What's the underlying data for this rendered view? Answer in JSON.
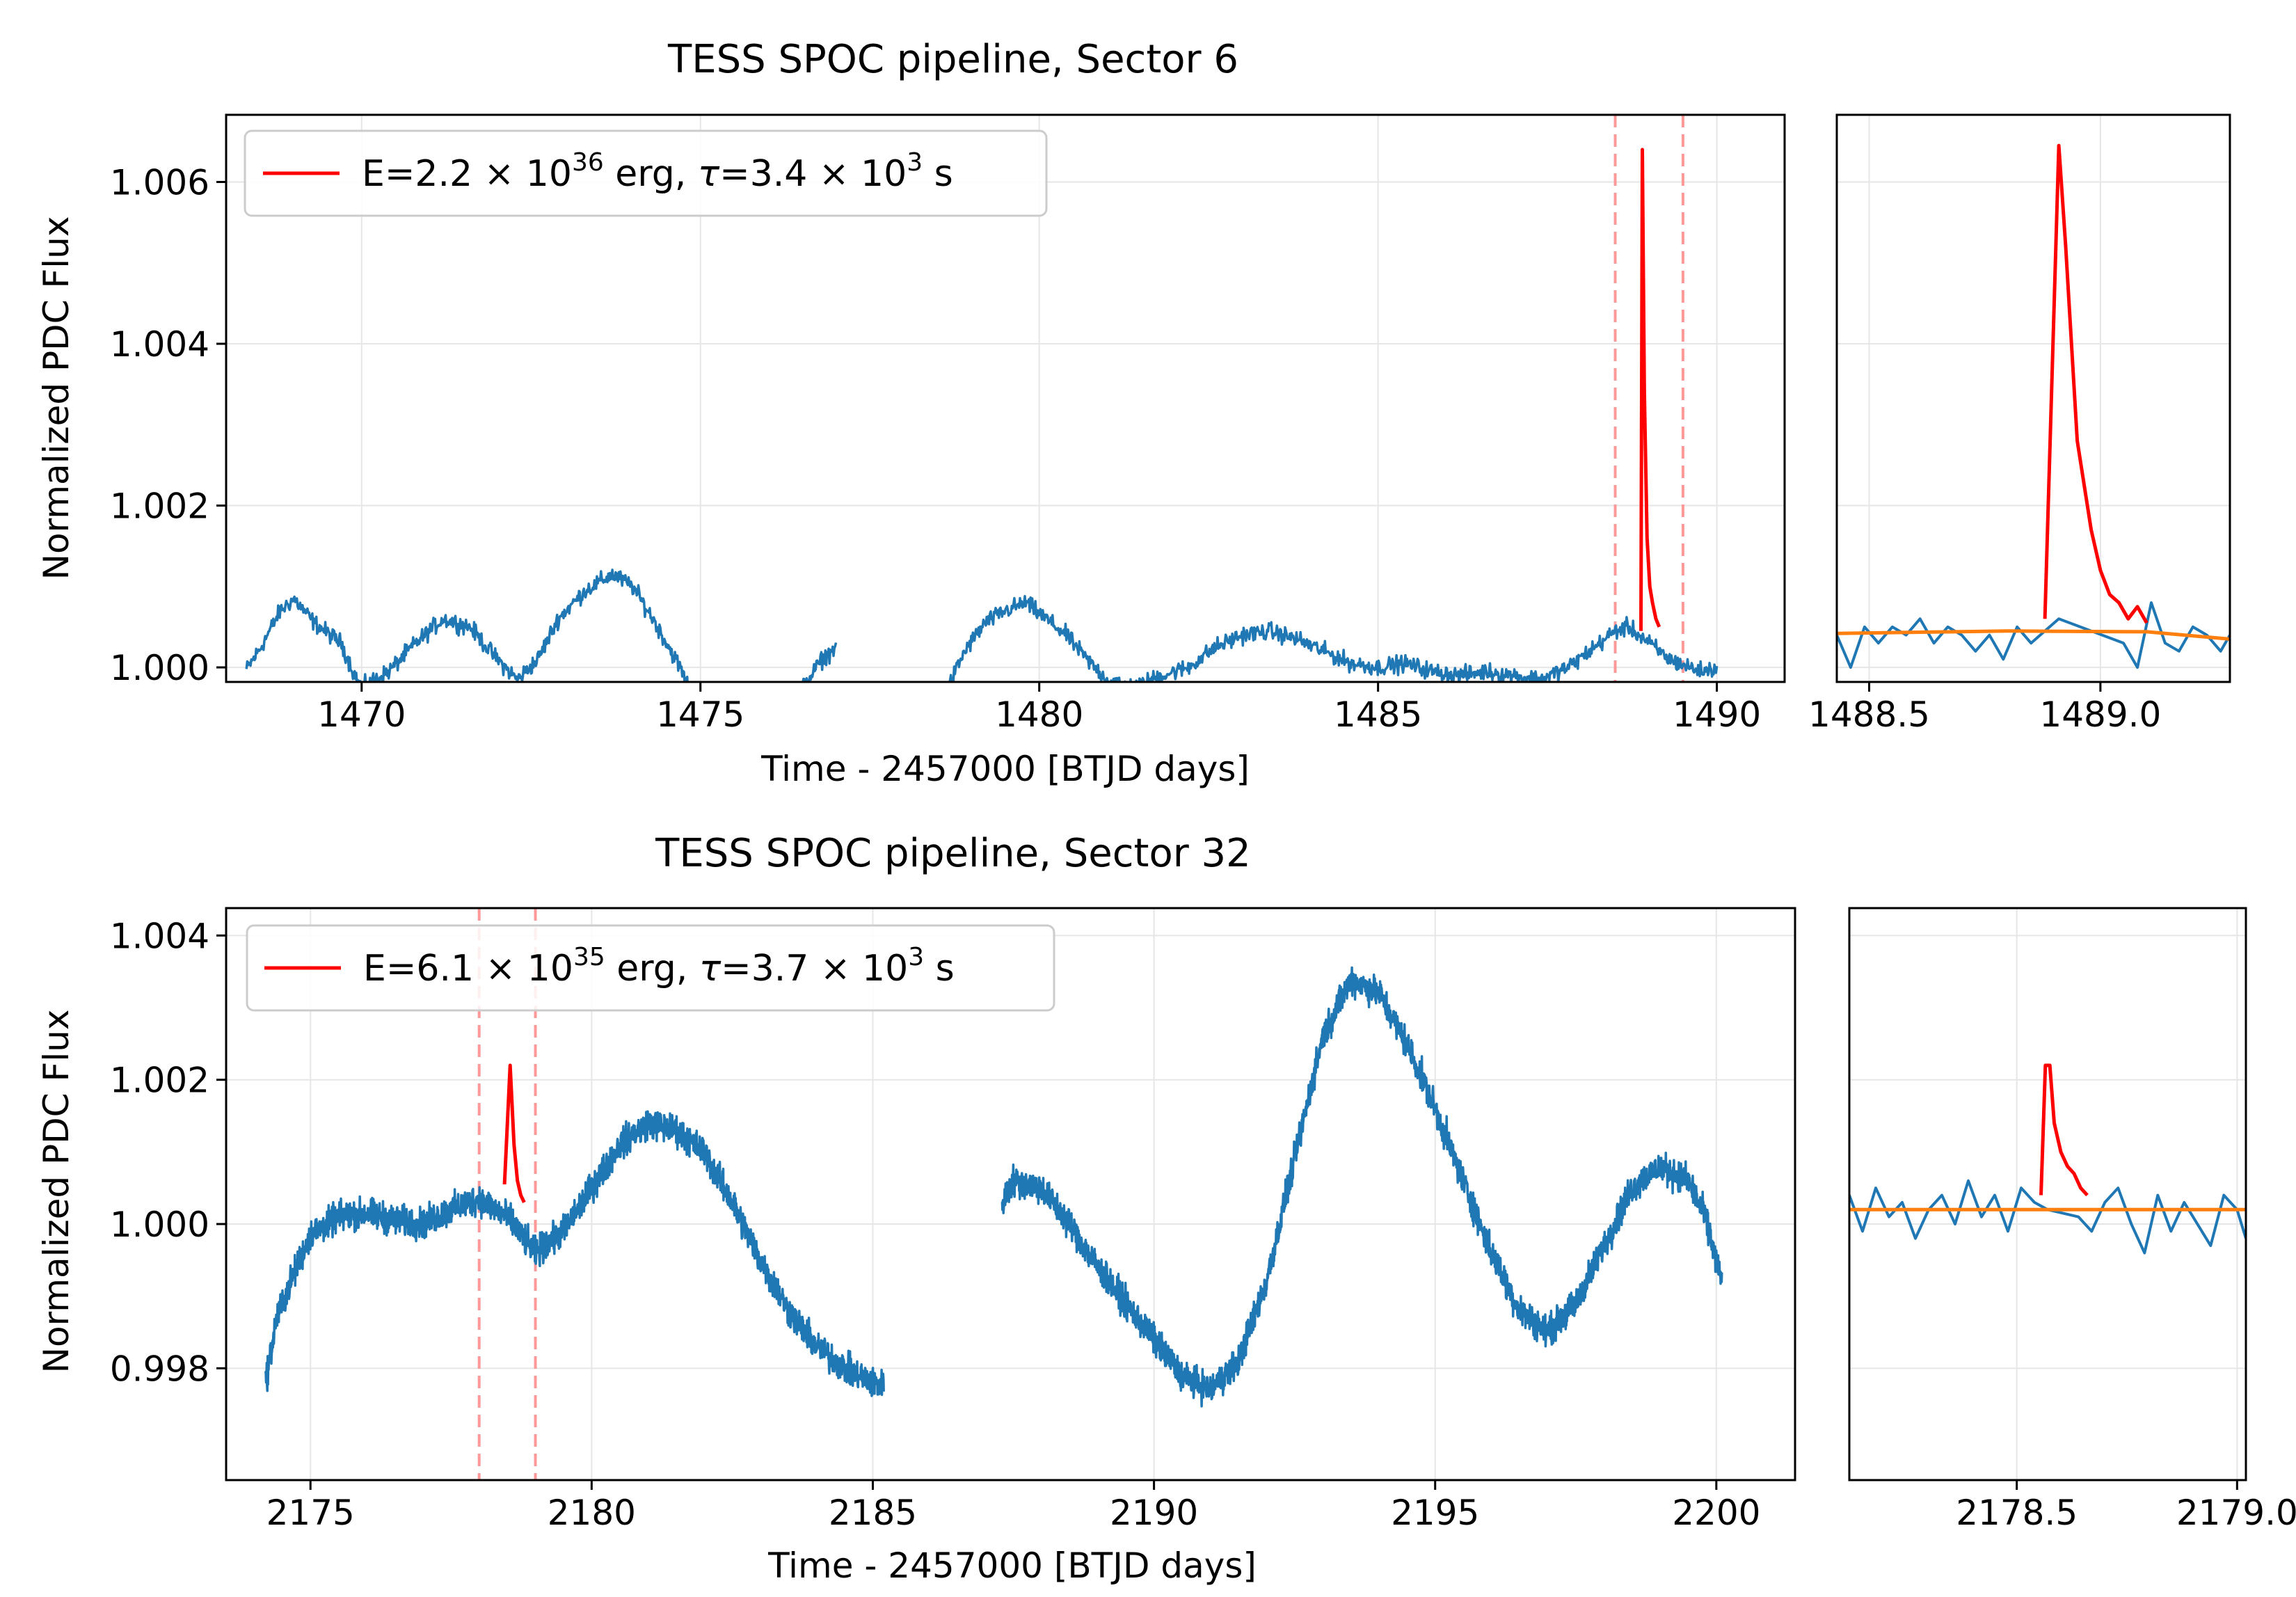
{
  "figure": {
    "background": "#ffffff"
  },
  "chart_data": [
    {
      "type": "line",
      "title": "TESS SPOC pipeline, Sector 6",
      "xlabel": "Time - 2457000 [BTJD days]",
      "ylabel": "Normalized PDC Flux",
      "xlim": [
        1468.0,
        1491.0
      ],
      "ylim": [
        0.99982,
        1.00683
      ],
      "xticks": [
        1470,
        1475,
        1480,
        1485,
        1490
      ],
      "xtick_labels": [
        "1470",
        "1475",
        "1480",
        "1485",
        "1490"
      ],
      "yticks": [
        1.0,
        1.002,
        1.004,
        1.006
      ],
      "ytick_labels": [
        "1.000",
        "1.002",
        "1.004",
        "1.006"
      ],
      "grid": true,
      "legend": {
        "placement": "upper-left",
        "label_pre": "E=2.2",
        "label_mid": "10",
        "label_exp": "36",
        "label_post": " erg, ",
        "label_tau": "τ",
        "label_eq": "=3.4",
        "label_mid2": "10",
        "label_exp2": "3",
        "label_end": " s"
      },
      "colors": {
        "light_curve": "#1f77b4",
        "flare": "#ff0000",
        "window": "#ff9999",
        "model": "#ff7f0e"
      },
      "flare_window": [
        1488.5,
        1489.5
      ],
      "light_curve_segments": [
        {
          "x": [
            1468.3,
            1468.5,
            1468.8,
            1469.0,
            1469.3,
            1469.7,
            1469.9,
            1470.0,
            1470.4,
            1470.8,
            1471.2,
            1471.6,
            1472.0,
            1472.3,
            1472.6,
            1472.9,
            1473.3,
            1473.7,
            1474.0,
            1474.3,
            1474.7,
            1475.0,
            1475.3,
            1475.6,
            1475.9,
            1476.2,
            1476.5,
            1476.8,
            1477.0
          ],
          "y": [
            0.99997,
            1.00023,
            1.0007,
            1.00085,
            1.00055,
            1.0003,
            0.9999,
            0.99975,
            0.99995,
            1.0003,
            1.0006,
            1.0005,
            1.0001,
            0.99985,
            1.0001,
            1.0006,
            1.00095,
            1.00115,
            1.001,
            1.0006,
            1.0,
            0.9994,
            0.9991,
            0.99885,
            0.999,
            0.9993,
            0.99975,
            1.0001,
            1.00025
          ]
        },
        {
          "x": [
            1478.3,
            1478.6,
            1478.9,
            1479.2,
            1479.5,
            1479.8,
            1480.1,
            1480.4,
            1480.7,
            1481.0,
            1481.4,
            1481.8,
            1482.2,
            1482.6,
            1483.0,
            1483.4,
            1483.8,
            1484.2,
            1484.6,
            1485.0,
            1485.4,
            1485.8,
            1486.2,
            1486.6,
            1487.0,
            1487.4,
            1487.8,
            1488.2,
            1488.5,
            1488.7,
            1489.0,
            1489.3,
            1489.6,
            1489.8,
            1490.0
          ],
          "y": [
            0.9995,
            0.99965,
            1.0002,
            1.00055,
            1.0007,
            1.0008,
            1.0006,
            1.0004,
            1.0001,
            0.99985,
            0.99975,
            0.9999,
            1.0,
            1.00025,
            1.0004,
            1.00045,
            1.00035,
            1.0002,
            1.00005,
            1.0,
            1.00005,
            0.99995,
            0.9999,
            0.99995,
            0.9999,
            0.99985,
            1.0,
            1.00025,
            1.00045,
            1.0005,
            1.0003,
            1.0001,
            1.0,
            0.99995,
            1.0
          ]
        }
      ],
      "flare_curve": {
        "x": [
          1488.88,
          1488.9,
          1488.93,
          1488.97,
          1489.01,
          1489.05,
          1489.1,
          1489.15
        ],
        "y": [
          1.00045,
          1.0064,
          1.0034,
          1.0016,
          1.001,
          1.0008,
          1.0006,
          1.0005
        ]
      },
      "inset": {
        "xlim": [
          1488.43,
          1489.28
        ],
        "ylim": [
          0.99982,
          1.00683
        ],
        "xticks": [
          1488.5,
          1489.0
        ],
        "xtick_labels": [
          "1488.5",
          "1489.0"
        ],
        "light_curve": {
          "x": [
            1488.43,
            1488.46,
            1488.49,
            1488.52,
            1488.55,
            1488.58,
            1488.61,
            1488.64,
            1488.67,
            1488.7,
            1488.73,
            1488.76,
            1488.79,
            1488.82,
            1488.85,
            1488.88,
            1488.91,
            1489.05,
            1489.08,
            1489.11,
            1489.14,
            1489.17,
            1489.2,
            1489.23,
            1489.26,
            1489.28
          ],
          "y": [
            1.0004,
            1.0,
            1.0005,
            1.0003,
            1.0005,
            1.0004,
            1.0006,
            1.0003,
            1.0005,
            1.0004,
            1.0002,
            1.0004,
            1.0001,
            1.0005,
            1.0003,
            1.00045,
            1.0006,
            1.0003,
            1.0,
            1.0008,
            1.0003,
            1.0002,
            1.0005,
            1.0004,
            1.0002,
            1.0004
          ]
        },
        "flare_curve": {
          "x": [
            1488.88,
            1488.91,
            1488.925,
            1488.95,
            1488.98,
            1489.0,
            1489.02,
            1489.04,
            1489.06,
            1489.08,
            1489.1
          ],
          "y": [
            1.0006,
            1.00645,
            1.0052,
            1.0028,
            1.0017,
            1.0012,
            1.0009,
            1.0008,
            1.0006,
            1.00075,
            1.00055
          ]
        },
        "model_curve": {
          "x": [
            1488.43,
            1488.8,
            1489.1,
            1489.28
          ],
          "y": [
            1.00042,
            1.00045,
            1.00044,
            1.00035
          ]
        }
      }
    },
    {
      "type": "line",
      "title": "TESS SPOC pipeline, Sector 32",
      "xlabel": "Time - 2457000 [BTJD days]",
      "ylabel": "Normalized PDC Flux",
      "xlim": [
        2173.5,
        2201.4
      ],
      "ylim": [
        0.99645,
        1.00438
      ],
      "xticks": [
        2175,
        2180,
        2185,
        2190,
        2195,
        2200
      ],
      "xtick_labels": [
        "2175",
        "2180",
        "2185",
        "2190",
        "2195",
        "2200"
      ],
      "yticks": [
        0.998,
        1.0,
        1.002,
        1.004
      ],
      "ytick_labels": [
        "0.998",
        "1.000",
        "1.002",
        "1.004"
      ],
      "grid": true,
      "legend": {
        "placement": "upper-left",
        "label_pre": "E=6.1",
        "label_mid": "10",
        "label_exp": "35",
        "label_post": " erg, ",
        "label_tau": "τ",
        "label_eq": "=3.7",
        "label_mid2": "10",
        "label_exp2": "3",
        "label_end": " s"
      },
      "colors": {
        "light_curve": "#1f77b4",
        "flare": "#ff0000",
        "window": "#ff9999",
        "model": "#ff7f0e"
      },
      "flare_window": [
        2178.0,
        2179.0
      ],
      "light_curve_segments": [
        {
          "x": [
            2174.2,
            2174.4,
            2174.7,
            2175.0,
            2175.5,
            2176.0,
            2176.5,
            2177.0,
            2177.5,
            2178.0,
            2178.5,
            2179.0,
            2179.5,
            2180.0,
            2180.5,
            2181.0,
            2181.5,
            2182.0,
            2182.5,
            2183.0,
            2183.5,
            2184.0,
            2184.5,
            2185.0,
            2185.2
          ],
          "y": [
            0.9978,
            0.9987,
            0.9993,
            0.99985,
            1.0001,
            1.00015,
            1.00005,
            1.0,
            1.0002,
            1.00035,
            1.0001,
            0.9996,
            0.9999,
            1.0005,
            1.0011,
            1.0014,
            1.0013,
            1.001,
            1.0003,
            0.9995,
            0.9988,
            0.9983,
            0.998,
            0.9978,
            0.99775
          ]
        },
        {
          "x": [
            2187.3,
            2187.5,
            2188.0,
            2188.5,
            2189.0,
            2189.5,
            2190.0,
            2190.5,
            2191.0,
            2191.5,
            2192.0,
            2192.5,
            2193.0,
            2193.5,
            2194.0,
            2194.5,
            2195.0,
            2195.5,
            2196.0,
            2196.5,
            2197.0,
            2197.5,
            2198.0,
            2198.5,
            2199.0,
            2199.5,
            2199.8,
            2200.1
          ],
          "y": [
            1.0003,
            1.0006,
            1.0005,
            1.0,
            0.9994,
            0.9989,
            0.9984,
            0.9979,
            0.9977,
            0.9981,
            0.9992,
            1.0009,
            1.0026,
            1.0034,
            1.0032,
            1.0025,
            1.0016,
            1.0006,
            0.9996,
            0.9988,
            0.9985,
            0.9989,
            0.9997,
            1.0005,
            1.0008,
            1.0006,
            1.0001,
            0.9992
          ]
        }
      ],
      "flare_curve": {
        "x": [
          2178.45,
          2178.55,
          2178.62,
          2178.68,
          2178.74,
          2178.8
        ],
        "y": [
          1.00055,
          1.0022,
          1.0011,
          1.0006,
          1.0004,
          1.0003
        ]
      },
      "inset": {
        "xlim": [
          2178.12,
          2179.02
        ],
        "ylim": [
          0.99645,
          1.00438
        ],
        "xticks": [
          2178.5,
          2179.0
        ],
        "xtick_labels": [
          "2178.5",
          "2179.0"
        ],
        "light_curve": {
          "x": [
            2178.12,
            2178.15,
            2178.18,
            2178.21,
            2178.24,
            2178.27,
            2178.3,
            2178.33,
            2178.36,
            2178.39,
            2178.42,
            2178.45,
            2178.48,
            2178.51,
            2178.54,
            2178.57,
            2178.64,
            2178.67,
            2178.7,
            2178.73,
            2178.76,
            2178.79,
            2178.82,
            2178.85,
            2178.88,
            2178.91,
            2178.94,
            2178.97,
            2179.0,
            2179.02
          ],
          "y": [
            1.0004,
            0.9999,
            1.0005,
            1.0001,
            1.0003,
            0.9998,
            1.0002,
            1.0004,
            1.0,
            1.0006,
            1.0001,
            1.0004,
            0.9999,
            1.0005,
            1.0003,
            1.0002,
            1.0001,
            0.9999,
            1.0003,
            1.0005,
            1.0,
            0.9996,
            1.0004,
            0.9999,
            1.0003,
            1.0,
            0.9997,
            1.0004,
            1.0002,
            0.9998
          ]
        },
        "flare_curve": {
          "x": [
            2178.555,
            2178.565,
            2178.575,
            2178.585,
            2178.6,
            2178.615,
            2178.63,
            2178.645,
            2178.66
          ],
          "y": [
            1.0004,
            1.0022,
            1.0022,
            1.0014,
            1.001,
            1.0008,
            1.0007,
            1.0005,
            1.0004
          ]
        },
        "model_curve": {
          "x": [
            2178.12,
            2179.02
          ],
          "y": [
            1.0002,
            1.0002
          ]
        }
      }
    }
  ]
}
